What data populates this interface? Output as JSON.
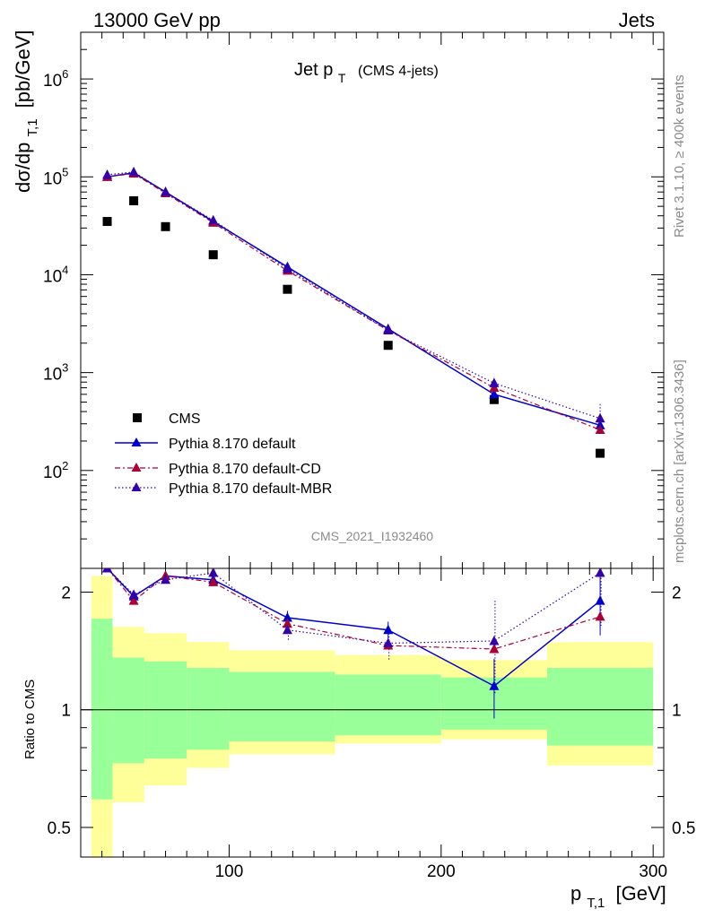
{
  "header": {
    "left": "13000 GeV pp",
    "right": "Jets"
  },
  "side_text": {
    "top": "Rivet 3.1.10, ≥ 400k events",
    "bottom": "mcplots.cern.ch [arXiv:1306.3436]"
  },
  "chart_data": {
    "type": "scatter",
    "title": {
      "main": "Jet p",
      "sub": "T",
      "suffix": "(CMS 4-jets)"
    },
    "analysis_id": "CMS_2021_I1932460",
    "ylabel": {
      "main": "dσ/dp",
      "sub": "T,1",
      "unit": "[pb/GeV]"
    },
    "xlabel": {
      "main": "p",
      "sub": "T,1",
      "unit": "[GeV]"
    },
    "ratio_ylabel": "Ratio to CMS",
    "xlim": [
      30,
      305
    ],
    "ylim_main": [
      10,
      3000000
    ],
    "ylim_ratio": [
      0.42,
      2.3
    ],
    "log_y": true,
    "x_ticks": [
      "100",
      "200",
      "300"
    ],
    "y_main_ticks": [
      {
        "base": "10",
        "exp": "2"
      },
      {
        "base": "10",
        "exp": "3"
      },
      {
        "base": "10",
        "exp": "4"
      },
      {
        "base": "10",
        "exp": "5"
      },
      {
        "base": "10",
        "exp": "6"
      }
    ],
    "y_ratio_ticks": [
      "0.5",
      "1",
      "2"
    ],
    "x": [
      42.5,
      55,
      70,
      92.5,
      127.5,
      175,
      225,
      275
    ],
    "bin_edges": [
      35,
      45,
      60,
      80,
      100,
      150,
      200,
      250,
      300
    ],
    "legend": [
      "CMS",
      "Pythia 8.170 default",
      "Pythia 8.170 default-CD",
      "Pythia 8.170 default-MBR"
    ],
    "series": [
      {
        "name": "CMS",
        "color": "#000000",
        "values": [
          35000,
          57000,
          31000,
          16000,
          7100,
          1900,
          530,
          150
        ]
      },
      {
        "name": "Pythia 8.170 default",
        "color": "#0000cc",
        "values": [
          100000,
          110000,
          70000,
          35000,
          12000,
          2800,
          600,
          290
        ]
      },
      {
        "name": "Pythia 8.170 default-CD",
        "color": "#aa0033",
        "values": [
          100000,
          108000,
          68000,
          34000,
          11000,
          2700,
          700,
          260
        ]
      },
      {
        "name": "Pythia 8.170 default-MBR",
        "color": "#3300aa",
        "values": [
          105000,
          112000,
          70000,
          36000,
          11500,
          2700,
          780,
          340
        ]
      }
    ],
    "ratio_series": [
      {
        "name": "Pythia 8.170 default",
        "values": [
          2.9,
          1.95,
          2.2,
          2.15,
          1.72,
          1.6,
          1.15,
          1.9
        ]
      },
      {
        "name": "Pythia 8.170 default-CD",
        "values": [
          2.9,
          1.9,
          2.2,
          2.12,
          1.66,
          1.46,
          1.43,
          1.73
        ]
      },
      {
        "name": "Pythia 8.170 default-MBR",
        "values": [
          3.0,
          1.97,
          2.15,
          2.24,
          1.6,
          1.48,
          1.5,
          2.24
        ]
      }
    ],
    "ratio_errors": {
      "x_index": [
        3,
        4,
        5,
        6,
        7
      ],
      "default_err": [
        0.05,
        0.07,
        0.08,
        0.2,
        0.35
      ],
      "mbr_err": [
        0.05,
        0.1,
        0.15,
        0.4,
        0.6
      ]
    },
    "bands": {
      "green_low": [
        0.59,
        0.73,
        0.75,
        0.79,
        0.83,
        0.86,
        0.89,
        0.81
      ],
      "green_high": [
        1.71,
        1.36,
        1.33,
        1.28,
        1.25,
        1.23,
        1.21,
        1.28
      ],
      "yellow_low": [
        0.1,
        0.58,
        0.64,
        0.71,
        0.77,
        0.82,
        0.84,
        0.72
      ],
      "yellow_high": [
        2.2,
        1.63,
        1.57,
        1.49,
        1.42,
        1.38,
        1.34,
        1.49
      ]
    },
    "colors": {
      "green_band": "#99ff99",
      "yellow_band": "#ffff99"
    }
  }
}
